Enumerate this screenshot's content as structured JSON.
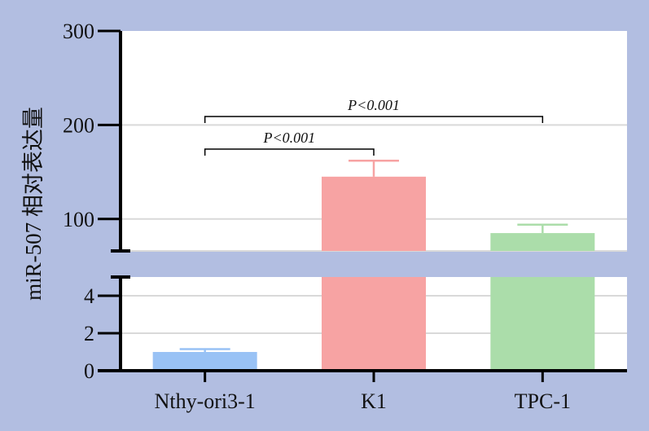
{
  "chart_data": {
    "type": "bar",
    "ylabel": "miR-507 相对表达量",
    "categories": [
      "Nthy-ori3-1",
      "K1",
      "TPC-1"
    ],
    "values": [
      1.0,
      145,
      85
    ],
    "errors": [
      0.15,
      17,
      9
    ],
    "colors": [
      "#99C2F5",
      "#F7A3A3",
      "#ABDDAA"
    ],
    "y_axis": {
      "broken": true,
      "lower_segment": {
        "range": [
          0,
          5
        ],
        "ticks": [
          0,
          2,
          4
        ]
      },
      "upper_segment": {
        "range": [
          66,
          300
        ],
        "ticks": [
          100,
          200,
          300
        ]
      }
    },
    "grid": true,
    "background_color": "#B2BEE1",
    "plot_background": "#FFFFFF",
    "significance": [
      {
        "from": 0,
        "to": 1,
        "label": "P<0.001"
      },
      {
        "from": 0,
        "to": 2,
        "label": "P<0.001"
      }
    ]
  }
}
